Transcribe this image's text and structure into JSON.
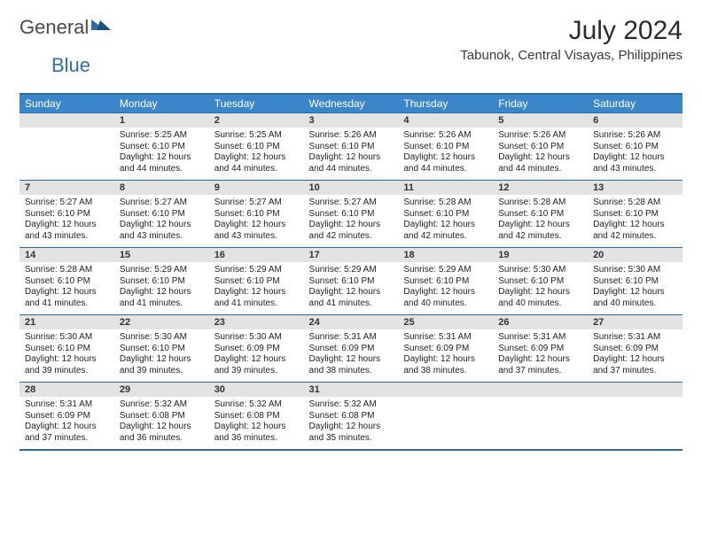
{
  "brand": {
    "part1": "General",
    "part2": "Blue"
  },
  "title": "July 2024",
  "location": "Tabunok, Central Visayas, Philippines",
  "colors": {
    "header_bg": "#3a86c8",
    "header_text": "#ffffff",
    "rule": "#2a6aa8",
    "daynum_bg": "#e3e3e3",
    "body_text": "#222222",
    "logo_blue": "#2f6fa8"
  },
  "dow": [
    "Sunday",
    "Monday",
    "Tuesday",
    "Wednesday",
    "Thursday",
    "Friday",
    "Saturday"
  ],
  "weeks": [
    [
      null,
      {
        "n": "1",
        "sr": "5:25 AM",
        "ss": "6:10 PM",
        "dl": "12 hours and 44 minutes."
      },
      {
        "n": "2",
        "sr": "5:25 AM",
        "ss": "6:10 PM",
        "dl": "12 hours and 44 minutes."
      },
      {
        "n": "3",
        "sr": "5:26 AM",
        "ss": "6:10 PM",
        "dl": "12 hours and 44 minutes."
      },
      {
        "n": "4",
        "sr": "5:26 AM",
        "ss": "6:10 PM",
        "dl": "12 hours and 44 minutes."
      },
      {
        "n": "5",
        "sr": "5:26 AM",
        "ss": "6:10 PM",
        "dl": "12 hours and 44 minutes."
      },
      {
        "n": "6",
        "sr": "5:26 AM",
        "ss": "6:10 PM",
        "dl": "12 hours and 43 minutes."
      }
    ],
    [
      {
        "n": "7",
        "sr": "5:27 AM",
        "ss": "6:10 PM",
        "dl": "12 hours and 43 minutes."
      },
      {
        "n": "8",
        "sr": "5:27 AM",
        "ss": "6:10 PM",
        "dl": "12 hours and 43 minutes."
      },
      {
        "n": "9",
        "sr": "5:27 AM",
        "ss": "6:10 PM",
        "dl": "12 hours and 43 minutes."
      },
      {
        "n": "10",
        "sr": "5:27 AM",
        "ss": "6:10 PM",
        "dl": "12 hours and 42 minutes."
      },
      {
        "n": "11",
        "sr": "5:28 AM",
        "ss": "6:10 PM",
        "dl": "12 hours and 42 minutes."
      },
      {
        "n": "12",
        "sr": "5:28 AM",
        "ss": "6:10 PM",
        "dl": "12 hours and 42 minutes."
      },
      {
        "n": "13",
        "sr": "5:28 AM",
        "ss": "6:10 PM",
        "dl": "12 hours and 42 minutes."
      }
    ],
    [
      {
        "n": "14",
        "sr": "5:28 AM",
        "ss": "6:10 PM",
        "dl": "12 hours and 41 minutes."
      },
      {
        "n": "15",
        "sr": "5:29 AM",
        "ss": "6:10 PM",
        "dl": "12 hours and 41 minutes."
      },
      {
        "n": "16",
        "sr": "5:29 AM",
        "ss": "6:10 PM",
        "dl": "12 hours and 41 minutes."
      },
      {
        "n": "17",
        "sr": "5:29 AM",
        "ss": "6:10 PM",
        "dl": "12 hours and 41 minutes."
      },
      {
        "n": "18",
        "sr": "5:29 AM",
        "ss": "6:10 PM",
        "dl": "12 hours and 40 minutes."
      },
      {
        "n": "19",
        "sr": "5:30 AM",
        "ss": "6:10 PM",
        "dl": "12 hours and 40 minutes."
      },
      {
        "n": "20",
        "sr": "5:30 AM",
        "ss": "6:10 PM",
        "dl": "12 hours and 40 minutes."
      }
    ],
    [
      {
        "n": "21",
        "sr": "5:30 AM",
        "ss": "6:10 PM",
        "dl": "12 hours and 39 minutes."
      },
      {
        "n": "22",
        "sr": "5:30 AM",
        "ss": "6:10 PM",
        "dl": "12 hours and 39 minutes."
      },
      {
        "n": "23",
        "sr": "5:30 AM",
        "ss": "6:09 PM",
        "dl": "12 hours and 39 minutes."
      },
      {
        "n": "24",
        "sr": "5:31 AM",
        "ss": "6:09 PM",
        "dl": "12 hours and 38 minutes."
      },
      {
        "n": "25",
        "sr": "5:31 AM",
        "ss": "6:09 PM",
        "dl": "12 hours and 38 minutes."
      },
      {
        "n": "26",
        "sr": "5:31 AM",
        "ss": "6:09 PM",
        "dl": "12 hours and 37 minutes."
      },
      {
        "n": "27",
        "sr": "5:31 AM",
        "ss": "6:09 PM",
        "dl": "12 hours and 37 minutes."
      }
    ],
    [
      {
        "n": "28",
        "sr": "5:31 AM",
        "ss": "6:09 PM",
        "dl": "12 hours and 37 minutes."
      },
      {
        "n": "29",
        "sr": "5:32 AM",
        "ss": "6:08 PM",
        "dl": "12 hours and 36 minutes."
      },
      {
        "n": "30",
        "sr": "5:32 AM",
        "ss": "6:08 PM",
        "dl": "12 hours and 36 minutes."
      },
      {
        "n": "31",
        "sr": "5:32 AM",
        "ss": "6:08 PM",
        "dl": "12 hours and 35 minutes."
      },
      null,
      null,
      null
    ]
  ],
  "labels": {
    "sunrise": "Sunrise: ",
    "sunset": "Sunset: ",
    "daylight": "Daylight: "
  }
}
